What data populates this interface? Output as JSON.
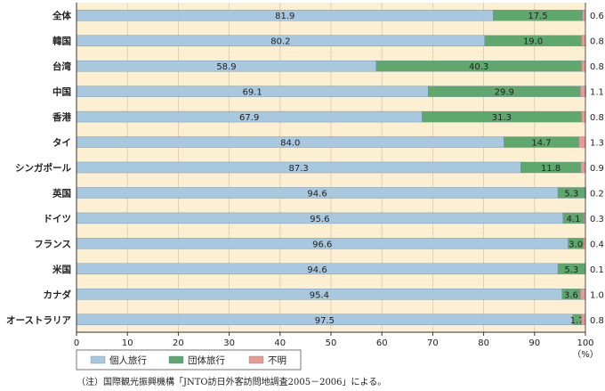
{
  "chart_data": {
    "type": "bar",
    "orientation": "horizontal",
    "stacked": true,
    "categories": [
      "全体",
      "韓国",
      "台湾",
      "中国",
      "香港",
      "タイ",
      "シンガポール",
      "英国",
      "ドイツ",
      "フランス",
      "米国",
      "カナダ",
      "オーストラリア"
    ],
    "series": [
      {
        "name": "個人旅行",
        "values": [
          81.9,
          80.2,
          58.9,
          69.1,
          67.9,
          84.0,
          87.3,
          94.6,
          95.6,
          96.6,
          94.6,
          95.4,
          97.5
        ],
        "labels": [
          "81.9",
          "80.2",
          "58.9",
          "69.1",
          "67.9",
          "84.0",
          "87.3",
          "94.6",
          "95.6",
          "96.6",
          "94.6",
          "95.4",
          "97.5"
        ],
        "color": "#a8c8e0"
      },
      {
        "name": "団体旅行",
        "values": [
          17.5,
          19.0,
          40.3,
          29.9,
          31.3,
          14.7,
          11.8,
          5.3,
          4.1,
          3.0,
          5.3,
          3.6,
          1.7
        ],
        "labels": [
          "17.5",
          "19.0",
          "40.3",
          "29.9",
          "31.3",
          "14.7",
          "11.8",
          "5.3",
          "4.1",
          "3.0",
          "5.3",
          "3.6",
          "1.7"
        ],
        "color": "#5ea86e"
      },
      {
        "name": "不明",
        "values": [
          0.6,
          0.8,
          0.8,
          1.1,
          0.8,
          1.3,
          0.9,
          0.2,
          0.3,
          0.4,
          0.1,
          1.0,
          0.8
        ],
        "labels": [
          "0.6",
          "0.8",
          "0.8",
          "1.1",
          "0.8",
          "1.3",
          "0.9",
          "0.2",
          "0.3",
          "0.4",
          "0.1",
          "1.0",
          "0.8"
        ],
        "color": "#e89a92"
      }
    ],
    "xlim": [
      0,
      100
    ],
    "xticks": [
      "0",
      "10",
      "20",
      "30",
      "40",
      "50",
      "60",
      "70",
      "80",
      "90",
      "100"
    ],
    "xunit": "（%）",
    "grid": true,
    "plot_background": "#fcefd2",
    "legend_position": "bottom-left",
    "note": "（注）国際観光振興機構「JNTO訪日外客訪問地調査2005－2006」による。"
  }
}
